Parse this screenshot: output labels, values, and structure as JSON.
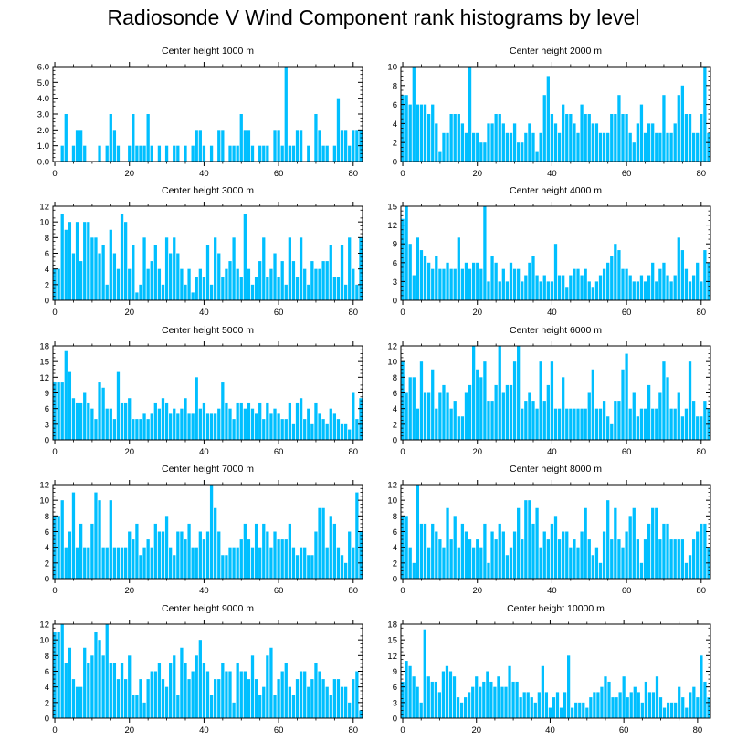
{
  "title": "Radiosonde V Wind Component rank histograms by level",
  "bar_color": "#00BFFF",
  "chart_data": [
    {
      "type": "bar",
      "title": "Center height 1000 m",
      "ylim": [
        0,
        6
      ],
      "yticks": [
        "0.0",
        "1.0",
        "2.0",
        "3.0",
        "4.0",
        "5.0",
        "6.0"
      ],
      "xticks": [
        "0",
        "20",
        "40",
        "60",
        "80"
      ],
      "x_start": 0,
      "values": [
        0,
        0,
        1,
        3,
        0,
        1,
        2,
        2,
        1,
        0,
        0,
        0,
        1,
        0,
        1,
        3,
        2,
        1,
        0,
        0,
        1,
        3,
        1,
        1,
        1,
        3,
        1,
        0,
        1,
        0,
        1,
        0,
        1,
        1,
        0,
        1,
        0,
        1,
        2,
        2,
        1,
        0,
        1,
        0,
        2,
        2,
        0,
        1,
        1,
        1,
        3,
        2,
        2,
        1,
        0,
        1,
        1,
        1,
        0,
        2,
        2,
        1,
        6,
        1,
        1,
        2,
        2,
        0,
        1,
        0,
        3,
        2,
        1,
        1,
        0,
        1,
        4,
        2,
        2,
        1,
        2,
        2,
        2
      ]
    },
    {
      "type": "bar",
      "title": "Center height 2000 m",
      "ylim": [
        0,
        10
      ],
      "yticks": [
        "0",
        "2",
        "4",
        "6",
        "8",
        "10"
      ],
      "xticks": [
        "0",
        "20",
        "40",
        "60",
        "80"
      ],
      "x_start": 0,
      "values": [
        7,
        7,
        6,
        10,
        6,
        6,
        6,
        5,
        6,
        4,
        1,
        3,
        3,
        5,
        5,
        5,
        4,
        3,
        10,
        3,
        3,
        2,
        2,
        4,
        4,
        5,
        5,
        4,
        3,
        3,
        4,
        2,
        2,
        3,
        4,
        3,
        1,
        3,
        7,
        9,
        5,
        4,
        3,
        6,
        5,
        5,
        4,
        3,
        6,
        5,
        5,
        4,
        4,
        3,
        3,
        3,
        5,
        5,
        7,
        5,
        5,
        3,
        2,
        4,
        6,
        3,
        4,
        4,
        3,
        3,
        7,
        3,
        3,
        4,
        7,
        8,
        5,
        5,
        3,
        3,
        5,
        10,
        3
      ]
    },
    {
      "type": "bar",
      "title": "Center height 3000 m",
      "ylim": [
        0,
        12
      ],
      "yticks": [
        "0",
        "2",
        "4",
        "6",
        "8",
        "10",
        "12"
      ],
      "xticks": [
        "0",
        "20",
        "40",
        "60",
        "80"
      ],
      "x_start": 0,
      "values": [
        4,
        4,
        11,
        9,
        10,
        6,
        10,
        5,
        10,
        10,
        8,
        8,
        6,
        7,
        2,
        9,
        6,
        4,
        11,
        10,
        4,
        7,
        1,
        2,
        8,
        4,
        5,
        7,
        4,
        2,
        8,
        6,
        8,
        6,
        4,
        2,
        4,
        1,
        3,
        4,
        3,
        7,
        2,
        8,
        6,
        3,
        4,
        5,
        8,
        4,
        3,
        11,
        4,
        2,
        3,
        5,
        8,
        3,
        4,
        6,
        3,
        5,
        2,
        8,
        5,
        3,
        8,
        4,
        2,
        5,
        4,
        4,
        5,
        5,
        7,
        3,
        3,
        7,
        2,
        8,
        4,
        2,
        8
      ]
    },
    {
      "type": "bar",
      "title": "Center height 4000 m",
      "ylim": [
        0,
        15
      ],
      "yticks": [
        "0",
        "3",
        "6",
        "9",
        "12",
        "15"
      ],
      "xticks": [
        "0",
        "20",
        "40",
        "60",
        "80"
      ],
      "x_start": 0,
      "values": [
        13,
        15,
        9,
        4,
        10,
        8,
        7,
        6,
        5,
        7,
        5,
        5,
        6,
        5,
        5,
        10,
        5,
        6,
        5,
        6,
        6,
        5,
        15,
        3,
        7,
        6,
        3,
        5,
        3,
        6,
        5,
        5,
        3,
        4,
        6,
        7,
        4,
        3,
        4,
        3,
        3,
        9,
        4,
        4,
        2,
        4,
        5,
        5,
        4,
        5,
        3,
        2,
        3,
        4,
        5,
        6,
        7,
        9,
        8,
        5,
        5,
        4,
        3,
        3,
        4,
        3,
        4,
        6,
        3,
        5,
        6,
        4,
        3,
        4,
        10,
        8,
        5,
        3,
        4,
        6,
        3,
        8,
        6
      ]
    },
    {
      "type": "bar",
      "title": "Center height 5000 m",
      "ylim": [
        0,
        18
      ],
      "yticks": [
        "0",
        "3",
        "6",
        "9",
        "12",
        "15",
        "18"
      ],
      "xticks": [
        "0",
        "20",
        "40",
        "60",
        "80"
      ],
      "x_start": 0,
      "values": [
        11,
        11,
        11,
        17,
        13,
        8,
        7,
        7,
        9,
        7,
        6,
        4,
        11,
        10,
        6,
        6,
        4,
        13,
        7,
        7,
        8,
        4,
        4,
        4,
        5,
        4,
        5,
        7,
        6,
        8,
        7,
        5,
        6,
        5,
        6,
        8,
        5,
        5,
        12,
        6,
        7,
        5,
        5,
        5,
        6,
        11,
        7,
        6,
        4,
        7,
        7,
        6,
        7,
        6,
        5,
        7,
        4,
        7,
        5,
        6,
        5,
        4,
        4,
        7,
        3,
        7,
        8,
        4,
        6,
        3,
        7,
        5,
        4,
        3,
        6,
        5,
        4,
        3,
        3,
        2,
        9,
        4,
        8
      ]
    },
    {
      "type": "bar",
      "title": "Center height 6000 m",
      "ylim": [
        0,
        12
      ],
      "yticks": [
        "0",
        "2",
        "4",
        "6",
        "8",
        "10",
        "12"
      ],
      "xticks": [
        "0",
        "20",
        "40",
        "60",
        "80"
      ],
      "x_start": 0,
      "values": [
        10,
        6,
        8,
        8,
        4,
        10,
        6,
        6,
        9,
        4,
        6,
        7,
        6,
        4,
        5,
        3,
        3,
        6,
        7,
        12,
        9,
        8,
        10,
        5,
        5,
        7,
        12,
        6,
        7,
        7,
        10,
        12,
        4,
        5,
        6,
        5,
        4,
        10,
        5,
        7,
        10,
        4,
        4,
        8,
        4,
        4,
        4,
        4,
        4,
        4,
        6,
        9,
        4,
        4,
        5,
        3,
        2,
        5,
        5,
        9,
        11,
        4,
        6,
        3,
        4,
        4,
        7,
        4,
        4,
        6,
        10,
        8,
        4,
        4,
        6,
        3,
        4,
        10,
        5,
        3,
        3,
        5,
        4
      ]
    },
    {
      "type": "bar",
      "title": "Center height 7000 m",
      "ylim": [
        0,
        12
      ],
      "yticks": [
        "0",
        "2",
        "4",
        "6",
        "8",
        "10",
        "12"
      ],
      "xticks": [
        "0",
        "20",
        "40",
        "60",
        "80"
      ],
      "x_start": 0,
      "values": [
        8,
        8,
        10,
        4,
        6,
        11,
        4,
        7,
        4,
        4,
        7,
        11,
        10,
        4,
        4,
        10,
        4,
        4,
        4,
        4,
        6,
        5,
        7,
        3,
        4,
        5,
        4,
        7,
        6,
        6,
        8,
        4,
        3,
        6,
        6,
        5,
        7,
        4,
        4,
        6,
        5,
        6,
        12,
        9,
        6,
        3,
        3,
        4,
        4,
        4,
        5,
        7,
        5,
        4,
        7,
        4,
        7,
        6,
        4,
        6,
        5,
        5,
        5,
        7,
        4,
        3,
        4,
        4,
        3,
        3,
        6,
        9,
        9,
        4,
        8,
        7,
        4,
        3,
        2,
        6,
        4,
        11,
        6
      ]
    },
    {
      "type": "bar",
      "title": "Center height 8000 m",
      "ylim": [
        0,
        12
      ],
      "yticks": [
        "0",
        "2",
        "4",
        "6",
        "8",
        "10",
        "12"
      ],
      "xticks": [
        "0",
        "20",
        "40",
        "60",
        "80"
      ],
      "x_start": 0,
      "values": [
        8,
        8,
        4,
        2,
        12,
        7,
        7,
        4,
        7,
        6,
        5,
        4,
        9,
        5,
        8,
        4,
        7,
        6,
        5,
        4,
        5,
        4,
        7,
        2,
        6,
        5,
        7,
        6,
        3,
        4,
        6,
        9,
        5,
        10,
        10,
        7,
        9,
        4,
        6,
        5,
        7,
        8,
        5,
        6,
        6,
        4,
        5,
        4,
        6,
        9,
        5,
        3,
        4,
        2,
        6,
        10,
        5,
        9,
        5,
        4,
        6,
        8,
        9,
        5,
        2,
        5,
        7,
        9,
        9,
        5,
        7,
        7,
        5,
        5,
        5,
        5,
        2,
        3,
        5,
        6,
        7,
        7,
        4
      ]
    },
    {
      "type": "bar",
      "title": "Center height 9000 m",
      "ylim": [
        0,
        12
      ],
      "yticks": [
        "0",
        "2",
        "4",
        "6",
        "8",
        "10",
        "12"
      ],
      "xticks": [
        "0",
        "20",
        "40",
        "60",
        "80"
      ],
      "x_start": 0,
      "values": [
        11,
        11,
        12,
        7,
        9,
        5,
        4,
        4,
        9,
        7,
        8,
        11,
        10,
        8,
        12,
        7,
        7,
        5,
        7,
        5,
        8,
        3,
        3,
        5,
        2,
        5,
        6,
        6,
        7,
        5,
        4,
        7,
        8,
        3,
        9,
        7,
        5,
        6,
        8,
        10,
        7,
        6,
        3,
        5,
        5,
        7,
        6,
        6,
        2,
        7,
        6,
        6,
        5,
        8,
        5,
        3,
        4,
        8,
        9,
        3,
        5,
        6,
        7,
        4,
        3,
        5,
        6,
        6,
        4,
        5,
        7,
        6,
        5,
        4,
        3,
        5,
        5,
        4,
        4,
        2,
        5,
        6,
        1
      ]
    },
    {
      "type": "bar",
      "title": "Center height 10000 m",
      "ylim": [
        0,
        18
      ],
      "yticks": [
        "0",
        "3",
        "6",
        "9",
        "12",
        "15",
        "18"
      ],
      "xticks": [
        "0",
        "20",
        "40",
        "60",
        "80"
      ],
      "x_start": 0,
      "values": [
        7,
        11,
        10,
        8,
        6,
        3,
        17,
        8,
        7,
        7,
        5,
        9,
        10,
        9,
        8,
        4,
        3,
        4,
        5,
        6,
        8,
        6,
        7,
        9,
        7,
        6,
        8,
        6,
        6,
        10,
        7,
        7,
        4,
        5,
        5,
        4,
        3,
        5,
        10,
        5,
        2,
        4,
        5,
        2,
        5,
        12,
        2,
        3,
        3,
        3,
        2,
        4,
        5,
        5,
        6,
        8,
        7,
        4,
        4,
        5,
        8,
        4,
        5,
        6,
        5,
        3,
        7,
        5,
        5,
        8,
        4,
        2,
        3,
        3,
        3,
        6,
        4,
        2,
        5,
        6,
        4,
        12,
        7,
        4
      ]
    }
  ]
}
